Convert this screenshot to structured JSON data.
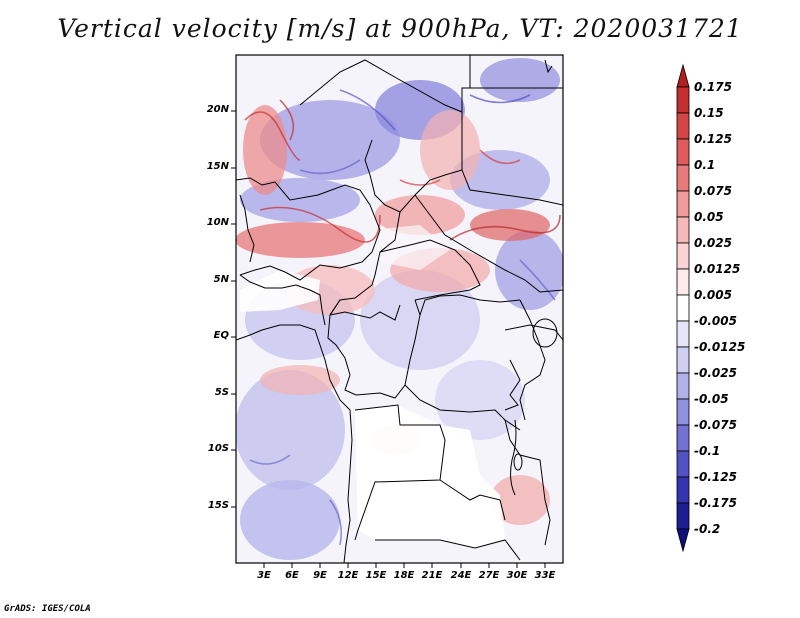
{
  "title": "Vertical velocity [m/s] at 900hPa, VT: 2020031721",
  "credit": "GrADS: IGES/COLA",
  "lat_labels": [
    "20N",
    "15N",
    "10N",
    "5N",
    "EQ",
    "5S",
    "10S",
    "15S"
  ],
  "lon_labels": [
    "3E",
    "6E",
    "9E",
    "12E",
    "15E",
    "18E",
    "21E",
    "24E",
    "27E",
    "30E",
    "33E"
  ],
  "colorbar": {
    "labels": [
      "0.175",
      "0.15",
      "0.125",
      "0.1",
      "0.075",
      "0.05",
      "0.025",
      "0.0125",
      "0.005",
      "-0.005",
      "-0.0125",
      "-0.025",
      "-0.05",
      "-0.075",
      "-0.1",
      "-0.125",
      "-0.175",
      "-0.2"
    ],
    "colors": [
      "#b31e1e",
      "#c42f2f",
      "#d44545",
      "#e05c5c",
      "#e87a7a",
      "#f09a9a",
      "#f6b8b8",
      "#fad4d4",
      "#fdeaea",
      "#ffffff",
      "#e6e6f8",
      "#cfcff2",
      "#b0b0ea",
      "#9090e0",
      "#7272d4",
      "#5252c4",
      "#3434b0",
      "#1d1d96",
      "#10107c"
    ]
  }
}
